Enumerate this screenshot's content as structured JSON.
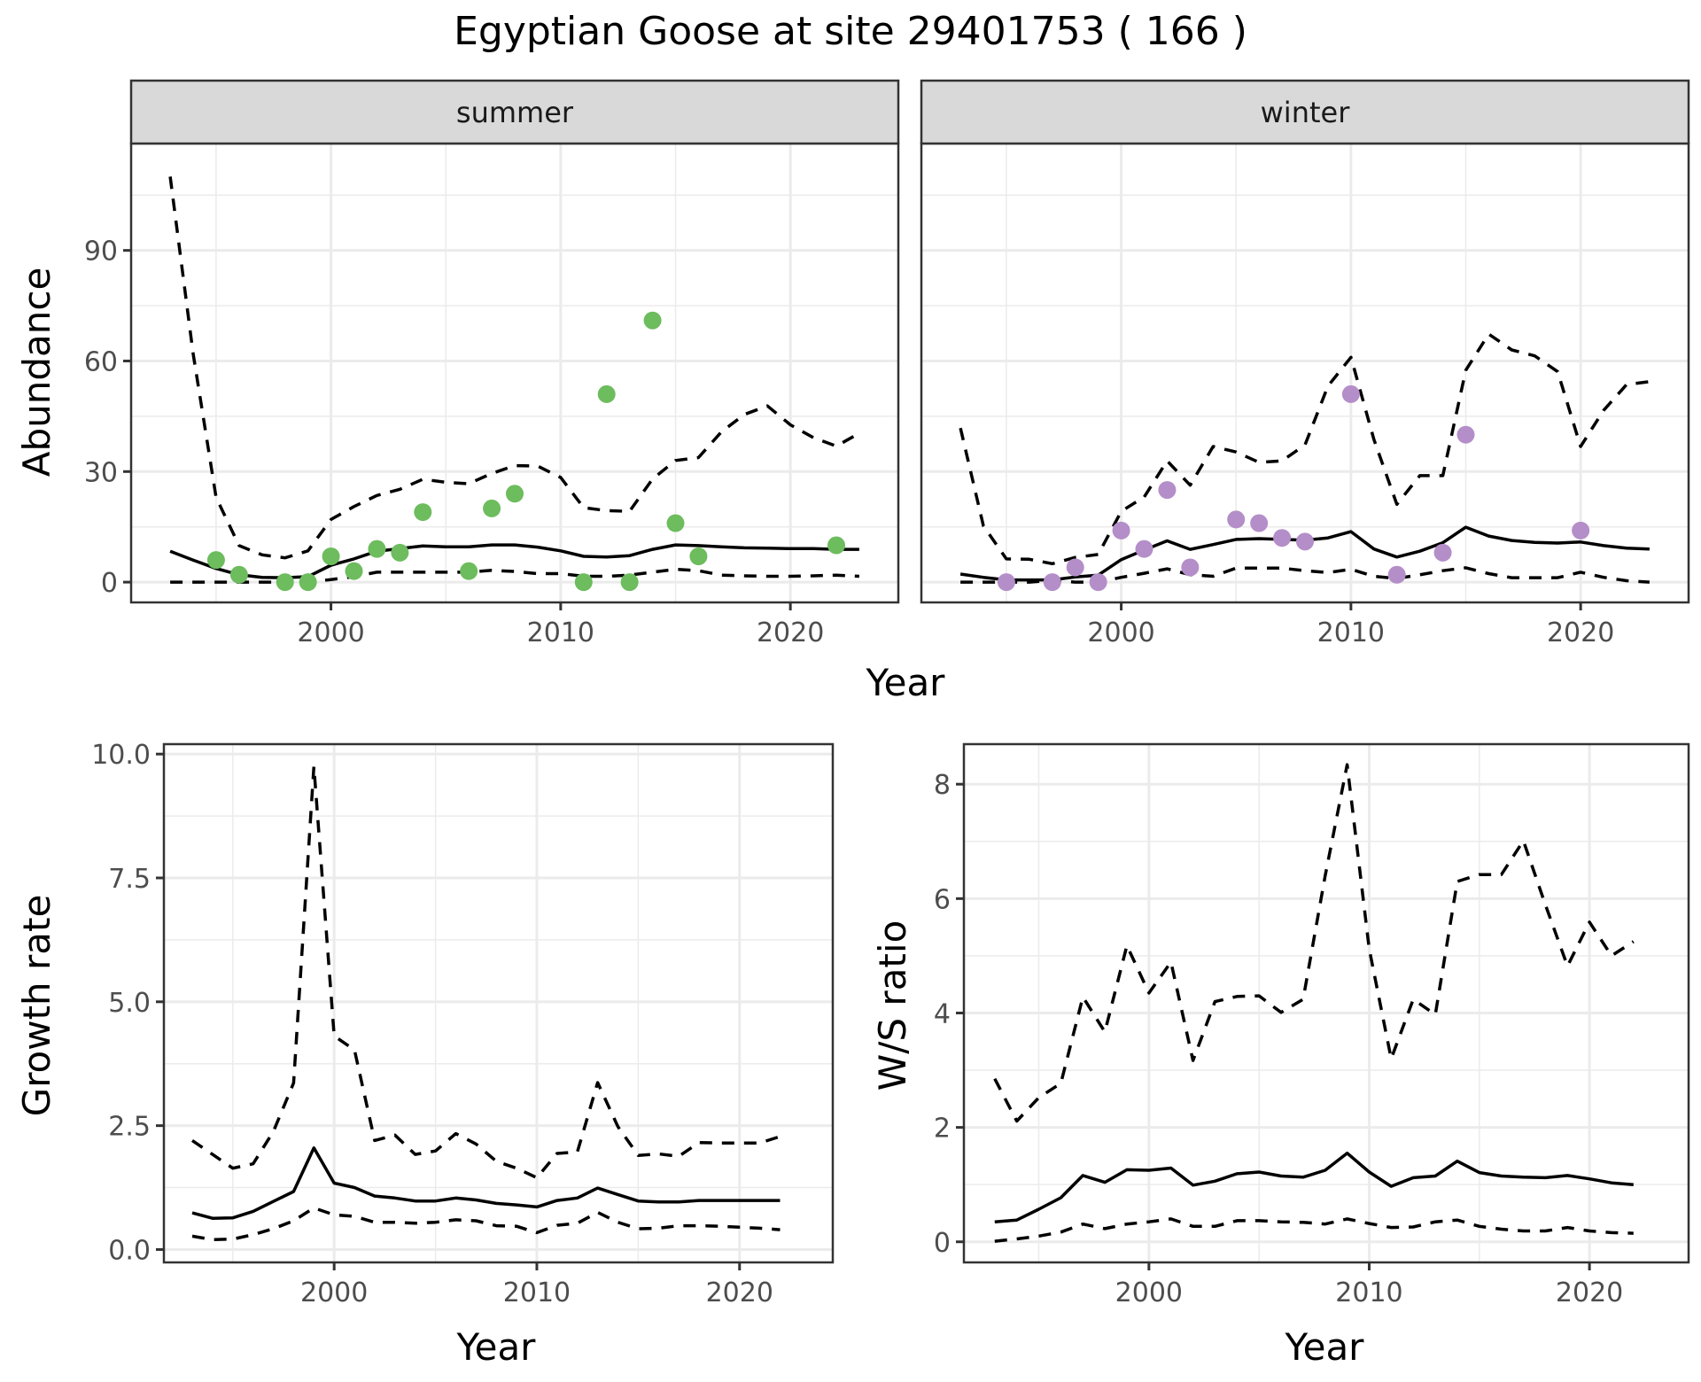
{
  "chart_data": {
    "title": "Egyptian Goose at site 29401753 ( 166 )",
    "colors": {
      "summer_points": "#6dbc5e",
      "winter_points": "#b48ec8",
      "lines": "#000000",
      "strip": "#d9d9d9"
    },
    "panels": [
      {
        "id": "abundance",
        "type": "line",
        "facets": [
          "summer",
          "winter"
        ],
        "xlabel": "Year",
        "ylabel": "Abundance",
        "xlim": [
          1991.3,
          2024.7
        ],
        "ylim": [
          -5.5,
          119
        ],
        "xticks": [
          2000,
          2010,
          2020
        ],
        "xtick_labels": [
          "2000",
          "2010",
          "2020"
        ],
        "yticks": [
          0,
          30,
          60,
          90
        ],
        "ytick_labels": [
          "0",
          "30",
          "60",
          "90"
        ],
        "yminor": [
          15,
          45,
          75,
          105
        ],
        "grid": true,
        "series": {
          "summer": {
            "points": {
              "x": [
                1995,
                1996,
                1998,
                1999,
                2000,
                2001,
                2002,
                2003,
                2004,
                2006,
                2007,
                2008,
                2011,
                2012,
                2013,
                2014,
                2015,
                2016,
                2022
              ],
              "y": [
                6,
                2,
                0,
                0,
                7,
                3,
                9,
                8,
                19,
                3,
                20,
                24,
                0,
                51,
                0,
                71,
                16,
                7,
                10
              ]
            },
            "years": [
              1993,
              1994,
              1995,
              1996,
              1997,
              1998,
              1999,
              2000,
              2001,
              2002,
              2003,
              2004,
              2005,
              2006,
              2007,
              2008,
              2009,
              2010,
              2011,
              2012,
              2013,
              2014,
              2015,
              2016,
              2017,
              2018,
              2019,
              2020,
              2021,
              2022,
              2023
            ],
            "mid": [
              8.4,
              6.0,
              3.7,
              2.0,
              1.3,
              1.2,
              1.5,
              4.6,
              6.3,
              8.4,
              9.1,
              9.8,
              9.6,
              9.6,
              10.1,
              10.1,
              9.5,
              8.5,
              7.0,
              6.8,
              7.2,
              8.9,
              10.1,
              9.9,
              9.6,
              9.3,
              9.2,
              9.1,
              9.1,
              8.9,
              8.9
            ],
            "lower": [
              0,
              0,
              0,
              0,
              0,
              0,
              0,
              0.7,
              1.5,
              2.7,
              2.7,
              2.7,
              2.7,
              2.7,
              3.2,
              2.9,
              2.3,
              2.3,
              1.6,
              1.6,
              1.9,
              2.7,
              3.5,
              3.1,
              1.9,
              1.7,
              1.6,
              1.6,
              1.7,
              1.9,
              1.6
            ],
            "upper": [
              110,
              62,
              23,
              9.9,
              7.4,
              6.6,
              8.5,
              17,
              20.5,
              23.5,
              25.2,
              27.9,
              27.1,
              26.7,
              29.5,
              31.6,
              31.5,
              28.4,
              20.2,
              19.4,
              19.2,
              28,
              33,
              33.8,
              40.8,
              45.5,
              47.8,
              42.7,
              39.2,
              36.9,
              40.4
            ]
          },
          "winter": {
            "points": {
              "x": [
                1995,
                1997,
                1998,
                1999,
                2000,
                2001,
                2002,
                2003,
                2005,
                2006,
                2007,
                2008,
                2010,
                2012,
                2014,
                2015,
                2020
              ],
              "y": [
                0,
                0,
                4,
                0,
                14,
                9,
                25,
                4,
                17,
                16,
                12,
                11,
                51,
                2,
                8,
                40,
                14
              ]
            },
            "years": [
              1993,
              1994,
              1995,
              1996,
              1997,
              1998,
              1999,
              2000,
              2001,
              2002,
              2003,
              2004,
              2005,
              2006,
              2007,
              2008,
              2009,
              2010,
              2011,
              2012,
              2013,
              2014,
              2015,
              2016,
              2017,
              2018,
              2019,
              2020,
              2021,
              2022,
              2023
            ],
            "mid": [
              2.2,
              1.3,
              0.6,
              0.6,
              0.6,
              1.4,
              1.9,
              6.1,
              8.7,
              11.2,
              8.9,
              10.2,
              11.6,
              11.8,
              11.6,
              11.4,
              12.0,
              13.7,
              9.0,
              6.8,
              8.4,
              10.7,
              14.9,
              12.5,
              11.3,
              10.8,
              10.6,
              10.9,
              9.9,
              9.2,
              9.0
            ],
            "lower": [
              0,
              0,
              0,
              0,
              0.5,
              0,
              0,
              1.3,
              2.4,
              3.6,
              2.0,
              1.6,
              3.8,
              3.8,
              3.8,
              3.1,
              2.6,
              3.5,
              1.6,
              1.0,
              2.0,
              3.1,
              3.9,
              2.3,
              1.2,
              1.2,
              1.2,
              2.7,
              1.3,
              0.4,
              0
            ],
            "upper": [
              41.8,
              15.3,
              6.3,
              6.2,
              5.0,
              6.7,
              7.5,
              19.2,
              23.1,
              32.9,
              26.3,
              36.8,
              35.3,
              32.5,
              32.9,
              37.2,
              53.2,
              61.0,
              38.7,
              21.1,
              28.9,
              28.9,
              57.5,
              67.3,
              63.0,
              61.4,
              57.1,
              36.8,
              46.6,
              53.6,
              54.4
            ]
          }
        }
      },
      {
        "id": "growth",
        "type": "line",
        "xlabel": "Year",
        "ylabel": "Growth rate",
        "xlim": [
          1991.6,
          2024.6
        ],
        "ylim": [
          -0.26,
          10.2
        ],
        "xticks": [
          2000,
          2010,
          2020
        ],
        "xtick_labels": [
          "2000",
          "2010",
          "2020"
        ],
        "yticks": [
          0,
          2.5,
          5,
          7.5,
          10
        ],
        "ytick_labels": [
          "0.0",
          "2.5",
          "5.0",
          "7.5",
          "10.0"
        ],
        "yminor": [
          1.25,
          3.75,
          6.25,
          8.75
        ],
        "grid": true,
        "years": [
          1993,
          1994,
          1995,
          1996,
          1997,
          1998,
          1999,
          2000,
          2001,
          2002,
          2003,
          2004,
          2005,
          2006,
          2007,
          2008,
          2009,
          2010,
          2011,
          2012,
          2013,
          2014,
          2015,
          2016,
          2017,
          2018,
          2019,
          2020,
          2021,
          2022
        ],
        "mid": [
          0.74,
          0.63,
          0.64,
          0.77,
          0.97,
          1.17,
          2.05,
          1.34,
          1.25,
          1.08,
          1.04,
          0.98,
          0.98,
          1.04,
          1.0,
          0.93,
          0.9,
          0.86,
          0.99,
          1.04,
          1.24,
          1.11,
          0.98,
          0.96,
          0.96,
          0.99,
          0.99,
          0.99,
          0.99,
          0.99
        ],
        "lower": [
          0.27,
          0.2,
          0.21,
          0.3,
          0.42,
          0.58,
          0.84,
          0.7,
          0.67,
          0.55,
          0.55,
          0.53,
          0.55,
          0.6,
          0.58,
          0.48,
          0.47,
          0.34,
          0.49,
          0.53,
          0.75,
          0.55,
          0.42,
          0.43,
          0.48,
          0.48,
          0.47,
          0.45,
          0.43,
          0.4
        ],
        "upper": [
          2.2,
          1.92,
          1.64,
          1.73,
          2.38,
          3.36,
          9.75,
          4.31,
          4.03,
          2.2,
          2.31,
          1.92,
          1.99,
          2.34,
          2.13,
          1.78,
          1.64,
          1.45,
          1.94,
          1.97,
          3.37,
          2.48,
          1.9,
          1.93,
          1.88,
          2.16,
          2.15,
          2.15,
          2.15,
          2.28
        ]
      },
      {
        "id": "ws_ratio",
        "type": "line",
        "xlabel": "Year",
        "ylabel": "W/S ratio",
        "xlim": [
          1991.6,
          2024.5
        ],
        "ylim": [
          -0.36,
          8.7
        ],
        "xticks": [
          2000,
          2010,
          2020
        ],
        "xtick_labels": [
          "2000",
          "2010",
          "2020"
        ],
        "yticks": [
          0,
          2,
          4,
          6,
          8
        ],
        "ytick_labels": [
          "0",
          "2",
          "4",
          "6",
          "8"
        ],
        "yminor": [
          1,
          3,
          5,
          7
        ],
        "grid": true,
        "years": [
          1993,
          1994,
          1995,
          1996,
          1997,
          1998,
          1999,
          2000,
          2001,
          2002,
          2003,
          2004,
          2005,
          2006,
          2007,
          2008,
          2009,
          2010,
          2011,
          2012,
          2013,
          2014,
          2015,
          2016,
          2017,
          2018,
          2019,
          2020,
          2021,
          2022
        ],
        "mid": [
          0.35,
          0.38,
          0.57,
          0.77,
          1.16,
          1.04,
          1.26,
          1.25,
          1.29,
          0.99,
          1.06,
          1.19,
          1.22,
          1.15,
          1.13,
          1.25,
          1.55,
          1.22,
          0.97,
          1.12,
          1.15,
          1.41,
          1.21,
          1.15,
          1.13,
          1.12,
          1.16,
          1.1,
          1.03,
          1.0
        ],
        "lower": [
          0.01,
          0.05,
          0.1,
          0.17,
          0.31,
          0.23,
          0.31,
          0.35,
          0.4,
          0.27,
          0.27,
          0.37,
          0.37,
          0.35,
          0.34,
          0.31,
          0.4,
          0.32,
          0.25,
          0.26,
          0.35,
          0.38,
          0.27,
          0.22,
          0.19,
          0.19,
          0.25,
          0.19,
          0.16,
          0.15
        ],
        "upper": [
          2.85,
          2.11,
          2.52,
          2.77,
          4.28,
          3.67,
          5.18,
          4.35,
          4.89,
          3.17,
          4.2,
          4.29,
          4.3,
          4.01,
          4.24,
          6.4,
          8.34,
          5.12,
          3.2,
          4.24,
          3.97,
          6.3,
          6.42,
          6.42,
          7.01,
          5.89,
          4.82,
          5.59,
          5.0,
          5.25
        ]
      }
    ]
  }
}
